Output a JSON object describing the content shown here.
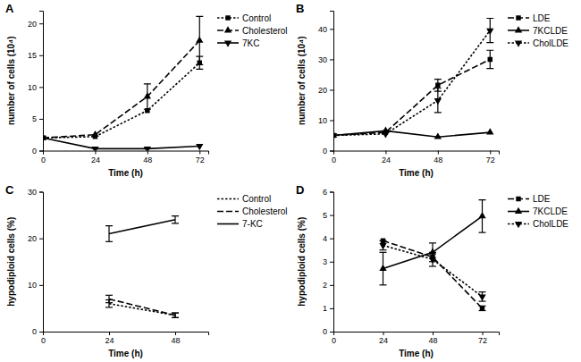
{
  "chart_data": [
    {
      "type": "line",
      "title": "A",
      "x_label": "Time (h)",
      "y_label": "number of cells (10⁴)",
      "x": [
        0,
        24,
        48,
        72
      ],
      "xlim": [
        0,
        76
      ],
      "xticks": [
        0,
        24,
        48,
        72
      ],
      "ylim": [
        0,
        22
      ],
      "yticks": [
        0,
        5,
        10,
        15,
        20
      ],
      "series": [
        {
          "name": "Control",
          "color": "#000000",
          "marker": "square",
          "line_style": "dotted",
          "values": [
            2,
            2.2,
            6.3,
            13.8
          ],
          "errors": [
            null,
            null,
            null,
            1
          ]
        },
        {
          "name": "Cholesterol",
          "color": "#000000",
          "marker": "triangle",
          "line_style": "dashed",
          "values": [
            2,
            2.5,
            8.5,
            17.3
          ],
          "errors": [
            null,
            null,
            2,
            3.8
          ]
        },
        {
          "name": "7KC",
          "color": "#000000",
          "marker": "triangle-down",
          "line_style": "solid",
          "values": [
            2,
            0.3,
            0.3,
            0.7
          ],
          "errors": [
            null,
            null,
            null,
            null
          ]
        }
      ]
    },
    {
      "type": "line",
      "title": "B",
      "x_label": "Time (h)",
      "y_label": "number of cells (10⁴)",
      "x": [
        0,
        24,
        48,
        72
      ],
      "xlim": [
        0,
        76
      ],
      "xticks": [
        0,
        24,
        48,
        72
      ],
      "ylim": [
        0,
        46
      ],
      "yticks": [
        0,
        10,
        20,
        30,
        40
      ],
      "series": [
        {
          "name": "LDE",
          "color": "#000000",
          "marker": "square",
          "line_style": "dashed",
          "values": [
            5,
            6,
            21.5,
            30
          ],
          "errors": [
            null,
            null,
            2,
            3
          ]
        },
        {
          "name": "7KCLDE",
          "color": "#000000",
          "marker": "triangle",
          "line_style": "solid",
          "values": [
            5,
            6.5,
            4.5,
            6
          ],
          "errors": [
            null,
            null,
            null,
            null
          ]
        },
        {
          "name": "CholLDE",
          "color": "#000000",
          "marker": "triangle-down",
          "line_style": "dotted",
          "values": [
            5,
            5.5,
            16.5,
            39.5
          ],
          "errors": [
            null,
            null,
            4,
            4
          ]
        }
      ]
    },
    {
      "type": "line",
      "title": "C",
      "x_label": "Time (h)",
      "y_label": "hypodiploid cells (%)",
      "x": [
        24,
        48
      ],
      "xlim": [
        0,
        60
      ],
      "xticks": [
        0,
        24,
        48
      ],
      "ylim": [
        0,
        30
      ],
      "yticks": [
        0,
        10,
        20,
        30
      ],
      "series": [
        {
          "name": "Control",
          "color": "#000000",
          "marker": "none",
          "line_style": "dotted",
          "values": [
            6,
            3.5
          ],
          "errors": [
            0.8,
            0.5
          ]
        },
        {
          "name": "Cholesterol",
          "color": "#000000",
          "marker": "none",
          "line_style": "dashed",
          "values": [
            7,
            3.5
          ],
          "errors": [
            0.8,
            0.5
          ]
        },
        {
          "name": "7-KC",
          "color": "#000000",
          "marker": "none",
          "line_style": "solid",
          "values": [
            21,
            24
          ],
          "errors": [
            1.7,
            0.8
          ]
        }
      ]
    },
    {
      "type": "line",
      "title": "D",
      "x_label": "Time (h)",
      "y_label": "hypodiploid cells (%)",
      "x": [
        24,
        48,
        72
      ],
      "xlim": [
        0,
        80
      ],
      "xticks": [
        0,
        24,
        48,
        72
      ],
      "ylim": [
        0,
        6
      ],
      "yticks": [
        0,
        1,
        2,
        3,
        4,
        5,
        6
      ],
      "series": [
        {
          "name": "LDE",
          "color": "#000000",
          "marker": "square",
          "line_style": "dashed",
          "values": [
            3.9,
            3.2,
            1.0
          ],
          "errors": [
            null,
            null,
            0.1
          ]
        },
        {
          "name": "7KCLDE",
          "color": "#000000",
          "marker": "triangle",
          "line_style": "solid",
          "values": [
            2.7,
            3.4,
            4.95
          ],
          "errors": [
            0.7,
            0.4,
            0.7
          ]
        },
        {
          "name": "CholLDE",
          "color": "#000000",
          "marker": "triangle-down",
          "line_style": "dotted",
          "values": [
            3.7,
            3.1,
            1.5
          ],
          "errors": [
            0.2,
            0.3,
            0.2
          ]
        }
      ]
    }
  ]
}
